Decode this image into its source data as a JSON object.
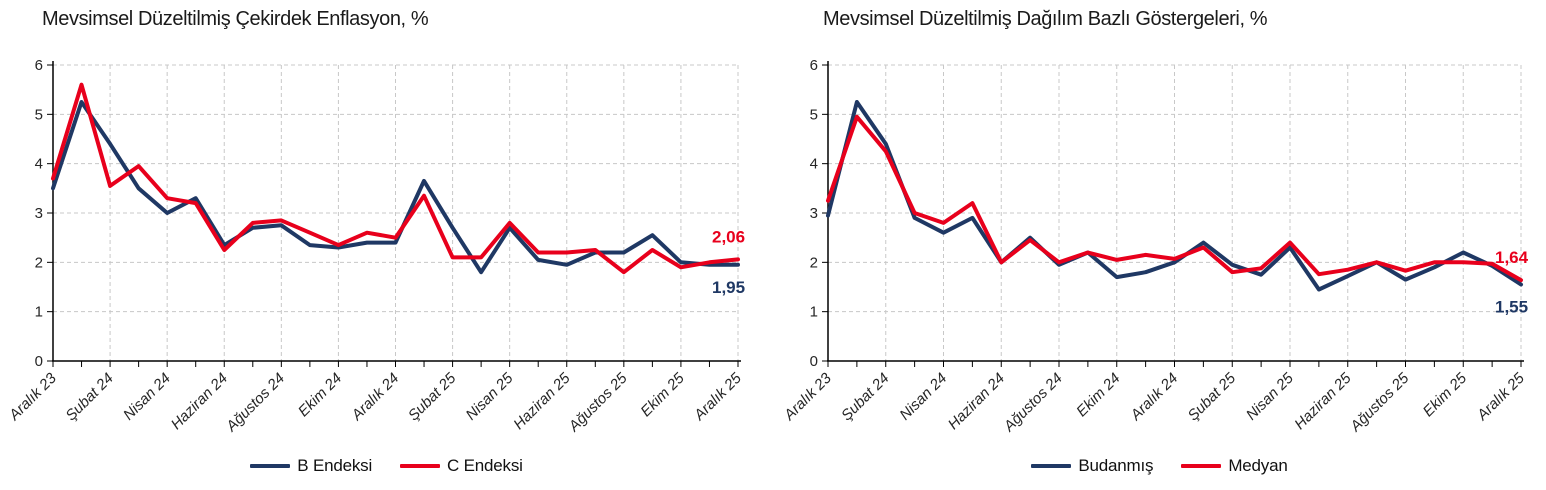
{
  "chart_data": [
    {
      "type": "line",
      "title": "Mevsimsel Düzeltilmiş Çekirdek Enflasyon, %",
      "xlabel": "",
      "ylabel": "",
      "ylim": [
        0,
        6
      ],
      "yticks": [
        0,
        1,
        2,
        3,
        4,
        5,
        6
      ],
      "grid": "dashed",
      "legend_position": "bottom",
      "x_frequency": "monthly",
      "x_tick_labels": [
        "Aralık 23",
        "Şubat 24",
        "Nisan 24",
        "Haziran 24",
        "Ağustos 24",
        "Ekim 24",
        "Aralık 24",
        "Şubat 25",
        "Nisan 25",
        "Haziran 25",
        "Ağustos 25",
        "Ekim 25",
        "Aralık 25"
      ],
      "series": [
        {
          "name": "B Endeksi",
          "color": "#1f3864",
          "end_label": "1,95",
          "values": [
            3.5,
            5.25,
            4.4,
            3.5,
            3.0,
            3.3,
            2.35,
            2.7,
            2.75,
            2.35,
            2.3,
            2.4,
            2.4,
            3.65,
            2.7,
            1.8,
            2.7,
            2.05,
            1.95,
            2.2,
            2.2,
            2.55,
            2.0,
            1.95,
            1.95
          ]
        },
        {
          "name": "C Endeksi",
          "color": "#e8001c",
          "end_label": "2,06",
          "values": [
            3.7,
            5.6,
            3.55,
            3.95,
            3.3,
            3.2,
            2.25,
            2.8,
            2.85,
            2.6,
            2.35,
            2.6,
            2.5,
            3.35,
            2.1,
            2.1,
            2.8,
            2.2,
            2.2,
            2.25,
            1.8,
            2.25,
            1.9,
            2.0,
            2.06
          ]
        }
      ]
    },
    {
      "type": "line",
      "title": "Mevsimsel Düzeltilmiş Dağılım Bazlı Göstergeleri, %",
      "xlabel": "",
      "ylabel": "",
      "ylim": [
        0,
        6
      ],
      "yticks": [
        0,
        1,
        2,
        3,
        4,
        5,
        6
      ],
      "grid": "dashed",
      "legend_position": "bottom",
      "x_frequency": "monthly",
      "x_tick_labels": [
        "Aralık 23",
        "Şubat 24",
        "Nisan 24",
        "Haziran 24",
        "Ağustos 24",
        "Ekim 24",
        "Aralık 24",
        "Şubat 25",
        "Nisan 25",
        "Haziran 25",
        "Ağustos 25",
        "Ekim 25",
        "Aralık 25"
      ],
      "series": [
        {
          "name": "Budanmış",
          "color": "#1f3864",
          "end_label": "1,55",
          "values": [
            2.95,
            5.25,
            4.4,
            2.9,
            2.6,
            2.9,
            2.0,
            2.5,
            1.95,
            2.2,
            1.7,
            1.8,
            2.0,
            2.4,
            1.95,
            1.75,
            2.3,
            1.45,
            1.72,
            2.0,
            1.65,
            1.9,
            2.2,
            1.93,
            1.55
          ]
        },
        {
          "name": "Medyan",
          "color": "#e8001c",
          "end_label": "1,64",
          "values": [
            3.25,
            4.95,
            4.25,
            3.0,
            2.8,
            3.2,
            2.0,
            2.45,
            2.0,
            2.2,
            2.05,
            2.15,
            2.07,
            2.3,
            1.8,
            1.88,
            2.4,
            1.76,
            1.85,
            2.0,
            1.83,
            2.0,
            2.0,
            1.97,
            1.64
          ]
        }
      ]
    }
  ],
  "style": {
    "grid_color": "#c8c8c8",
    "axis_color": "#000000",
    "tick_label_color": "#262626"
  }
}
